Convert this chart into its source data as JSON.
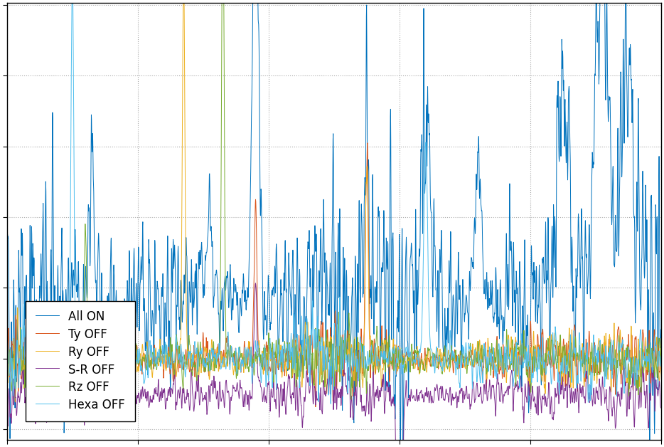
{
  "title": "",
  "xlabel": "",
  "ylabel": "",
  "legend_labels": [
    "All ON",
    "Ty OFF",
    "Ry OFF",
    "S-R OFF",
    "Rz OFF",
    "Hexa OFF"
  ],
  "legend_colors": [
    "#0072BD",
    "#D95319",
    "#EDB120",
    "#7E2F8E",
    "#77AC30",
    "#4DBEEE"
  ],
  "line_widths": [
    0.7,
    0.7,
    0.7,
    0.7,
    0.7,
    0.7
  ],
  "background_color": "#FFFFFF",
  "grid_color": "#AAAAAA",
  "n_points": 3000,
  "figsize": [
    9.34,
    6.28
  ],
  "dpi": 100,
  "ylim": [
    -1.0,
    1.0
  ]
}
